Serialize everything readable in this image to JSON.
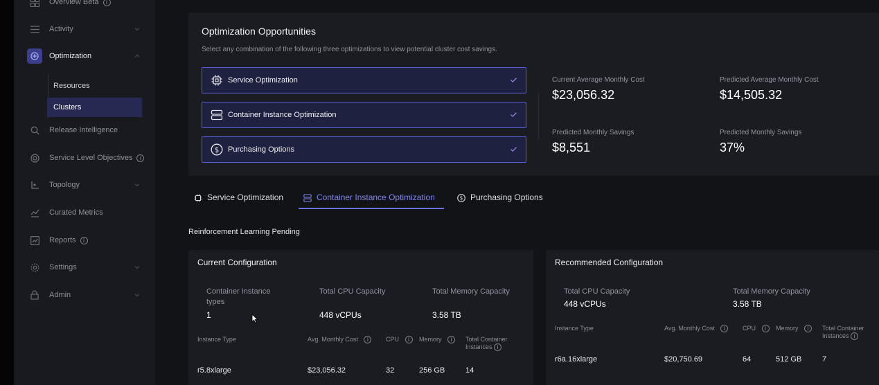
{
  "sidebar": {
    "items": [
      {
        "label": "Overview Beta",
        "icon": "grid-icon"
      },
      {
        "label": "Activity",
        "icon": "list-icon"
      },
      {
        "label": "Optimization",
        "icon": "optimization-icon"
      },
      {
        "label": "Release Intelligence",
        "icon": "search-icon"
      },
      {
        "label": "Service Level Objectives",
        "icon": "target-icon"
      },
      {
        "label": "Topology",
        "icon": "topology-icon"
      },
      {
        "label": "Curated Metrics",
        "icon": "line-chart-icon"
      },
      {
        "label": "Reports",
        "icon": "report-icon"
      },
      {
        "label": "Settings",
        "icon": "gear-icon"
      },
      {
        "label": "Admin",
        "icon": "lock-icon"
      }
    ],
    "sub_items": [
      {
        "label": "Resources"
      },
      {
        "label": "Clusters"
      }
    ]
  },
  "opportunities": {
    "title": "Optimization Opportunities",
    "subtitle": "Select any combination of the following three optimizations to view potential cluster cost savings.",
    "options": [
      {
        "label": "Service Optimization"
      },
      {
        "label": "Container Instance Optimization"
      },
      {
        "label": "Purchasing Options"
      }
    ],
    "metrics": {
      "current_cost_label": "Current Average Monthly Cost",
      "current_cost_value": "$23,056.32",
      "predicted_cost_label": "Predicted Average Monthly Cost",
      "predicted_cost_value": "$14,505.32",
      "savings_label": "Predicted Monthly Savings",
      "savings_value": "$8,551",
      "savings_pct_label": "Predicted Monthly Savings",
      "savings_pct_value": "37%"
    }
  },
  "tabs": [
    {
      "label": "Service Optimization"
    },
    {
      "label": "Container Instance Optimization"
    },
    {
      "label": "Purchasing Options"
    }
  ],
  "pending_label": "Reinforcement Learning Pending",
  "current": {
    "title": "Current Configuration",
    "types_label": "Container Instance types",
    "types_value": "1",
    "cpu_label": "Total CPU Capacity",
    "cpu_value": "448 vCPUs",
    "mem_label": "Total Memory Capacity",
    "mem_value": "3.58 TB",
    "headers": {
      "instance_type": "Instance Type",
      "avg_cost": "Avg. Monthly Cost",
      "cpu": "CPU",
      "memory": "Memory",
      "total_instances": "Total Container Instances"
    },
    "row": {
      "instance_type": "r5.8xlarge",
      "avg_cost": "$23,056.32",
      "cpu": "32",
      "memory": "256 GB",
      "total_instances": "14"
    }
  },
  "recommended": {
    "title": "Recommended Configuration",
    "cpu_label": "Total CPU Capacity",
    "cpu_value": "448 vCPUs",
    "mem_label": "Total Memory Capacity",
    "mem_value": "3.58 TB",
    "headers": {
      "instance_type": "Instance Type",
      "avg_cost": "Avg. Monthly Cost",
      "cpu": "CPU",
      "memory": "Memory",
      "total_instances": "Total Container Instances"
    },
    "row": {
      "instance_type": "r6a.16xlarge",
      "avg_cost": "$20,750.69",
      "cpu": "64",
      "memory": "512 GB",
      "total_instances": "7"
    }
  },
  "colors": {
    "accent": "#6b70e8",
    "background": "#121316",
    "panel": "#1b1c21"
  }
}
